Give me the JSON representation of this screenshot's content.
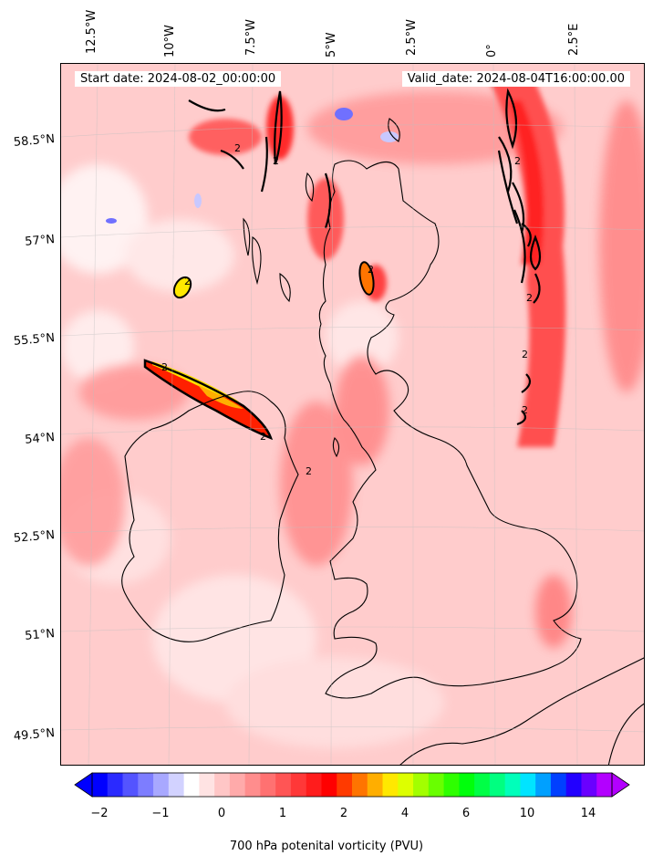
{
  "lon_labels": [
    "12.5°W",
    "10°W",
    "7.5°W",
    "5°W",
    "2.5°W",
    "0°",
    "2.5°E"
  ],
  "lat_labels": [
    "58.5°N",
    "57°N",
    "55.5°N",
    "54°N",
    "52.5°N",
    "51°N",
    "49.5°N"
  ],
  "start_date": "Start date: 2024-08-02_00:00:00",
  "valid_date": "Valid_date: 2024-08-04T16:00:00.00",
  "contour_label": "2",
  "colorbar": {
    "ticks": [
      "−2",
      "−1",
      "0",
      "1",
      "2",
      "4",
      "6",
      "10",
      "14"
    ],
    "title": "700 hPa potenital vorticity (PVU)",
    "colors": [
      "#0000ff",
      "#2a2aff",
      "#5454ff",
      "#7d7dff",
      "#a8a8ff",
      "#d2d2ff",
      "#ffffff",
      "#ffe3e3",
      "#ffc6c6",
      "#ffaaaa",
      "#ff8d8d",
      "#ff7171",
      "#ff5555",
      "#ff3838",
      "#ff1c1c",
      "#ff0000",
      "#ff3a00",
      "#ff7400",
      "#ffae00",
      "#ffe800",
      "#ddff00",
      "#a3ff00",
      "#69ff00",
      "#2eff00",
      "#00ff0c",
      "#00ff46",
      "#00ff80",
      "#00ffba",
      "#00e4ff",
      "#00a0ff",
      "#0040ff",
      "#2200ff",
      "#6a00ff",
      "#b300ff"
    ]
  }
}
